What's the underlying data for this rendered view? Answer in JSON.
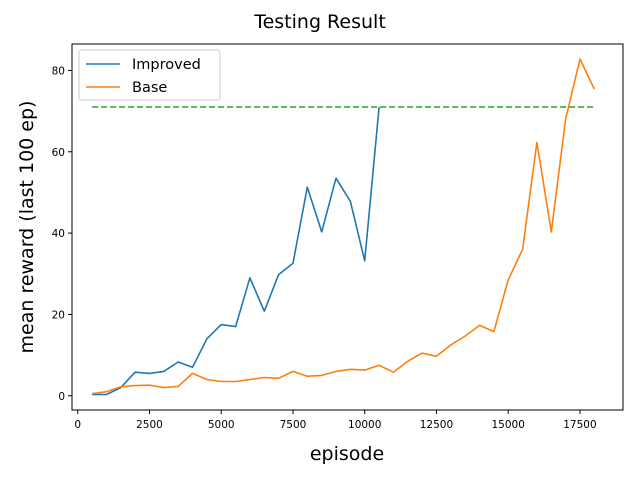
{
  "chart_data": {
    "type": "line",
    "title": "Testing Result",
    "xlabel": "episode",
    "ylabel": "mean reward (last 100 ep)",
    "xlim": [
      -200,
      19000
    ],
    "ylim": [
      -3.5,
      86.5
    ],
    "xticks": [
      0,
      2500,
      5000,
      7500,
      10000,
      12500,
      15000,
      17500
    ],
    "yticks": [
      0,
      20,
      40,
      60,
      80
    ],
    "grid": false,
    "legend": "top-left",
    "series": [
      {
        "name": "Improved",
        "color": "#1f77b4",
        "x": [
          500,
          1000,
          1500,
          2000,
          2500,
          3000,
          3500,
          4000,
          4500,
          5000,
          5500,
          6000,
          6500,
          7000,
          7500,
          8000,
          8500,
          9000,
          9500,
          10000,
          10500
        ],
        "y": [
          0.3,
          0.3,
          2,
          5.8,
          5.5,
          6,
          8.3,
          7,
          14,
          17.5,
          17,
          29,
          20.8,
          29.8,
          32.6,
          51.3,
          40.3,
          53.5,
          47.8,
          33.2,
          71
        ]
      },
      {
        "name": "Base",
        "color": "#ff7f0e",
        "x": [
          500,
          1000,
          1500,
          2000,
          2500,
          3000,
          3500,
          4000,
          4500,
          5000,
          5500,
          6000,
          6500,
          7000,
          7500,
          8000,
          8500,
          9000,
          9500,
          10000,
          10500,
          11000,
          11500,
          12000,
          12500,
          13000,
          13500,
          14000,
          14500,
          15000,
          15500,
          16000,
          16500,
          17000,
          17500,
          18000
        ],
        "y": [
          0.5,
          1,
          2.2,
          2.5,
          2.6,
          2,
          2.3,
          5.5,
          4,
          3.5,
          3.5,
          4,
          4.5,
          4.3,
          6,
          4.8,
          5,
          6,
          6.5,
          6.3,
          7.5,
          5.8,
          8.5,
          10.5,
          9.7,
          12.5,
          14.7,
          17.3,
          15.8,
          28.5,
          36,
          62.3,
          40.3,
          68,
          82.8,
          75.4
        ]
      },
      {
        "name": "",
        "color": "#2ca02c",
        "dashed": true,
        "x": [
          500,
          18000
        ],
        "y": [
          71,
          71
        ]
      }
    ]
  }
}
